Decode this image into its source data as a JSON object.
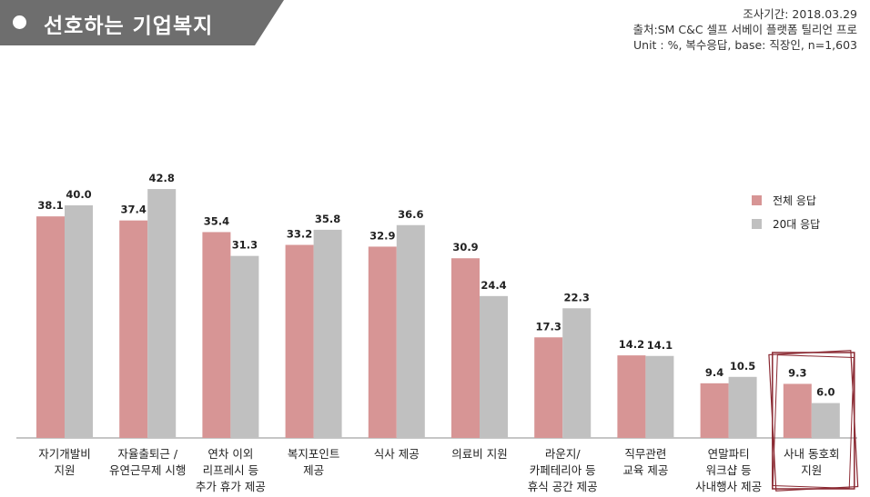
{
  "title": "선호하는 기업복지",
  "meta": {
    "period": "조사기간: 2018.03.29",
    "source": "출처:SM C&C 셀프 서베이 플랫폼 틸리언 프로",
    "unit": "Unit : %, 복수응답, base: 직장인, n=1,603"
  },
  "colors": {
    "total": "#d79595",
    "twenties": "#c0c0c0",
    "highlight": "#8b2a33"
  },
  "chart_data": {
    "type": "bar",
    "categories": [
      "자기개발비\n지원",
      "자율출퇴근 /\n유연근무제 시행",
      "연차 이외\n리프레시 등\n추가 휴가 제공",
      "복지포인트\n제공",
      "식사 제공",
      "의료비 지원",
      "라운지/\n카페테리아 등\n휴식 공간 제공",
      "직무관련\n교육 제공",
      "연말파티\n워크샵 등\n사내행사 제공",
      "사내 동호회\n지원"
    ],
    "series": [
      {
        "name": "전체 응답",
        "values": [
          38.1,
          37.4,
          35.4,
          33.2,
          32.9,
          30.9,
          17.3,
          14.2,
          9.4,
          9.3
        ]
      },
      {
        "name": "20대 응답",
        "values": [
          40.0,
          42.8,
          31.3,
          35.8,
          36.6,
          24.4,
          22.3,
          14.1,
          10.5,
          6.0
        ]
      }
    ],
    "value_labels": [
      [
        "38.1",
        "37.4",
        "35.4",
        "33.2",
        "32.9",
        "30.9",
        "17.3",
        "14.2",
        "9.4",
        "9.3"
      ],
      [
        "40.0",
        "42.8",
        "31.3",
        "35.8",
        "36.6",
        "24.4",
        "22.3",
        "14.1",
        "10.5",
        "6.0"
      ]
    ],
    "ylim": [
      0,
      50
    ],
    "highlighted_category": "사내 동호회\n지원",
    "legend_position": "right",
    "grid": false
  }
}
